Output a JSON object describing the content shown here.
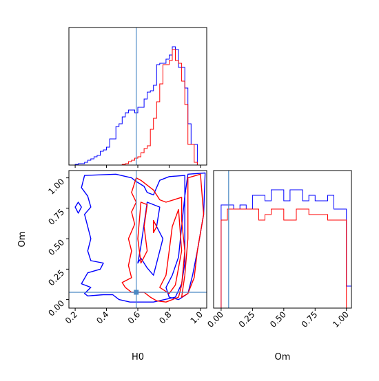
{
  "chart_data": {
    "type": "corner",
    "parameters": [
      "H0",
      "Om"
    ],
    "truth": {
      "H0": 0.59,
      "Om": 0.06
    },
    "colors": {
      "red": "#ff0000",
      "blue": "#0000ff",
      "truth": "#4a89c4"
    },
    "panels": [
      {
        "id": "hist_H0",
        "type": "step-histogram",
        "x_param": "H0",
        "xlim": [
          0.16,
          1.04
        ],
        "ylim": [
          0,
          1.0
        ],
        "bin_edges": [
          0.16,
          0.18,
          0.2,
          0.22,
          0.24,
          0.26,
          0.28,
          0.3,
          0.32,
          0.34,
          0.36,
          0.38,
          0.4,
          0.42,
          0.44,
          0.46,
          0.48,
          0.5,
          0.52,
          0.54,
          0.56,
          0.58,
          0.6,
          0.62,
          0.64,
          0.66,
          0.68,
          0.7,
          0.72,
          0.74,
          0.76,
          0.78,
          0.8,
          0.82,
          0.84,
          0.86,
          0.88,
          0.9,
          0.92,
          0.94,
          0.96,
          0.98,
          1.0
        ],
        "series": [
          {
            "name": "",
            "color": "#0000ff",
            "values": [
              0.0,
              0.0,
              0.005,
              0.01,
              0.01,
              0.02,
              0.035,
              0.045,
              0.06,
              0.07,
              0.1,
              0.11,
              0.13,
              0.19,
              0.19,
              0.28,
              0.3,
              0.35,
              0.38,
              0.4,
              0.4,
              0.38,
              0.42,
              0.42,
              0.48,
              0.53,
              0.54,
              0.58,
              0.73,
              0.74,
              0.74,
              0.77,
              0.8,
              0.86,
              0.84,
              0.71,
              0.71,
              0.56,
              0.3,
              0.15,
              0.15,
              0.0
            ]
          },
          {
            "name": "",
            "color": "#ff0000",
            "values": [
              0.0,
              0.0,
              0.0,
              0.0,
              0.0,
              0.0,
              0.0,
              0.0,
              0.0,
              0.0,
              0.0,
              0.0,
              0.0,
              0.0,
              0.0,
              0.0,
              0.0,
              0.005,
              0.01,
              0.025,
              0.035,
              0.05,
              0.06,
              0.09,
              0.12,
              0.14,
              0.26,
              0.34,
              0.46,
              0.59,
              0.73,
              0.73,
              0.76,
              0.84,
              0.76,
              0.74,
              0.61,
              0.44,
              0.15,
              0.15,
              0.02,
              0.0
            ]
          }
        ]
      },
      {
        "id": "hist_Om",
        "type": "step-histogram",
        "x_param": "Om",
        "xlim": [
          -0.06,
          1.04
        ],
        "ylim": [
          0,
          1.0
        ],
        "bin_edges": [
          -0.06,
          -0.01,
          0.0,
          0.05,
          0.1,
          0.15,
          0.2,
          0.25,
          0.3,
          0.35,
          0.4,
          0.45,
          0.5,
          0.55,
          0.6,
          0.65,
          0.7,
          0.75,
          0.8,
          0.85,
          0.9,
          0.95,
          1.0,
          1.04
        ],
        "series": [
          {
            "name": "",
            "color": "#0000ff",
            "values": [
              0.0,
              0.0,
              0.75,
              0.75,
              0.72,
              0.75,
              0.72,
              0.82,
              0.82,
              0.78,
              0.86,
              0.86,
              0.78,
              0.86,
              0.86,
              0.78,
              0.82,
              0.78,
              0.78,
              0.82,
              0.72,
              0.72,
              0.16
            ]
          },
          {
            "name": "",
            "color": "#ff0000",
            "values": [
              0.0,
              0.0,
              0.64,
              0.72,
              0.72,
              0.72,
              0.72,
              0.72,
              0.64,
              0.68,
              0.72,
              0.72,
              0.64,
              0.64,
              0.72,
              0.72,
              0.68,
              0.68,
              0.68,
              0.64,
              0.64,
              0.64,
              0.0
            ]
          }
        ]
      },
      {
        "id": "contour_H0_Om",
        "type": "contour",
        "x_param": "H0",
        "y_param": "Om",
        "xlim": [
          0.16,
          1.04
        ],
        "ylim": [
          -0.07,
          1.06
        ],
        "xticks": [
          "0.2",
          "0.4",
          "0.6",
          "0.8",
          "1.0"
        ],
        "xtick_values": [
          0.2,
          0.4,
          0.6,
          0.8,
          1.0
        ],
        "yticks": [
          "0.00",
          "0.25",
          "0.50",
          "0.75",
          "1.00"
        ],
        "ytick_values": [
          0.0,
          0.25,
          0.5,
          0.75,
          1.0
        ],
        "xlabel": "H0",
        "ylabel": "Om",
        "series": [
          {
            "name": "",
            "color": "#0000ff",
            "contours": [
              [
                [
                  0.26,
                  1.02
                ],
                [
                  0.46,
                  1.03
                ],
                [
                  0.56,
                  1.0
                ],
                [
                  0.59,
                  0.97
                ],
                [
                  0.64,
                  0.93
                ],
                [
                  0.66,
                  0.88
                ],
                [
                  0.7,
                  0.86
                ],
                [
                  0.74,
                  0.98
                ],
                [
                  0.8,
                  1.01
                ],
                [
                  0.9,
                  1.02
                ],
                [
                  0.9,
                  0.6
                ],
                [
                  0.9,
                  0.3
                ],
                [
                  0.88,
                  0.13
                ],
                [
                  0.84,
                  0.02
                ],
                [
                  0.7,
                  -0.02
                ],
                [
                  0.55,
                  -0.02
                ],
                [
                  0.48,
                  0.0
                ],
                [
                  0.44,
                  0.04
                ],
                [
                  0.38,
                  0.04
                ],
                [
                  0.28,
                  0.03
                ],
                [
                  0.26,
                  0.05
                ],
                [
                  0.3,
                  0.1
                ],
                [
                  0.24,
                  0.13
                ],
                [
                  0.28,
                  0.22
                ],
                [
                  0.36,
                  0.25
                ],
                [
                  0.38,
                  0.3
                ],
                [
                  0.3,
                  0.32
                ],
                [
                  0.28,
                  0.4
                ],
                [
                  0.3,
                  0.5
                ],
                [
                  0.28,
                  0.6
                ],
                [
                  0.26,
                  0.7
                ],
                [
                  0.3,
                  0.76
                ],
                [
                  0.28,
                  0.85
                ],
                [
                  0.24,
                  0.92
                ],
                [
                  0.26,
                  1.02
                ]
              ],
              [
                [
                  0.22,
                  0.71
                ],
                [
                  0.24,
                  0.76
                ],
                [
                  0.22,
                  0.8
                ],
                [
                  0.2,
                  0.76
                ],
                [
                  0.22,
                  0.71
                ]
              ],
              [
                [
                  0.66,
                  0.8
                ],
                [
                  0.74,
                  0.76
                ],
                [
                  0.72,
                  0.6
                ],
                [
                  0.76,
                  0.5
                ],
                [
                  0.72,
                  0.3
                ],
                [
                  0.7,
                  0.2
                ],
                [
                  0.66,
                  0.26
                ],
                [
                  0.62,
                  0.34
                ],
                [
                  0.6,
                  0.3
                ],
                [
                  0.62,
                  0.44
                ],
                [
                  0.64,
                  0.62
                ],
                [
                  0.66,
                  0.8
                ]
              ],
              [
                [
                  0.92,
                  1.03
                ],
                [
                  1.03,
                  1.04
                ],
                [
                  1.02,
                  0.7
                ],
                [
                  0.98,
                  0.4
                ],
                [
                  0.95,
                  0.2
                ],
                [
                  0.92,
                  0.05
                ],
                [
                  0.86,
                  0.0
                ],
                [
                  0.8,
                  0.02
                ],
                [
                  0.78,
                  0.1
                ],
                [
                  0.82,
                  0.2
                ],
                [
                  0.86,
                  0.35
                ],
                [
                  0.88,
                  0.6
                ],
                [
                  0.9,
                  0.85
                ],
                [
                  0.92,
                  1.03
                ]
              ]
            ]
          },
          {
            "name": "",
            "color": "#ff0000",
            "contours": [
              [
                [
                  0.59,
                  1.0
                ],
                [
                  0.62,
                  0.98
                ],
                [
                  0.7,
                  0.9
                ],
                [
                  0.74,
                  0.82
                ],
                [
                  0.78,
                  0.8
                ],
                [
                  0.88,
                  0.84
                ],
                [
                  0.88,
                  0.65
                ],
                [
                  0.9,
                  0.4
                ],
                [
                  0.88,
                  0.12
                ],
                [
                  0.86,
                  0.02
                ],
                [
                  0.78,
                  -0.02
                ],
                [
                  0.72,
                  -0.01
                ],
                [
                  0.68,
                  0.02
                ],
                [
                  0.64,
                  0.06
                ],
                [
                  0.56,
                  0.06
                ],
                [
                  0.52,
                  0.1
                ],
                [
                  0.5,
                  0.14
                ],
                [
                  0.56,
                  0.18
                ],
                [
                  0.54,
                  0.28
                ],
                [
                  0.56,
                  0.4
                ],
                [
                  0.54,
                  0.5
                ],
                [
                  0.58,
                  0.62
                ],
                [
                  0.56,
                  0.72
                ],
                [
                  0.59,
                  0.8
                ],
                [
                  0.56,
                  0.88
                ],
                [
                  0.59,
                  1.0
                ]
              ],
              [
                [
                  0.62,
                  0.8
                ],
                [
                  0.66,
                  0.78
                ],
                [
                  0.64,
                  0.6
                ],
                [
                  0.66,
                  0.4
                ],
                [
                  0.62,
                  0.3
                ],
                [
                  0.6,
                  0.5
                ],
                [
                  0.62,
                  0.8
                ]
              ],
              [
                [
                  0.7,
                  0.65
                ],
                [
                  0.72,
                  0.6
                ],
                [
                  0.7,
                  0.55
                ],
                [
                  0.7,
                  0.65
                ]
              ],
              [
                [
                  0.74,
                  0.1
                ],
                [
                  0.78,
                  0.2
                ],
                [
                  0.8,
                  0.4
                ],
                [
                  0.82,
                  0.6
                ],
                [
                  0.86,
                  0.74
                ],
                [
                  0.88,
                  0.4
                ],
                [
                  0.84,
                  0.12
                ],
                [
                  0.8,
                  0.05
                ],
                [
                  0.74,
                  0.1
                ]
              ],
              [
                [
                  0.92,
                  1.0
                ],
                [
                  1.0,
                  1.03
                ],
                [
                  1.02,
                  0.7
                ],
                [
                  0.98,
                  0.4
                ],
                [
                  0.96,
                  0.18
                ],
                [
                  0.92,
                  0.05
                ],
                [
                  0.88,
                  0.02
                ],
                [
                  0.9,
                  0.2
                ],
                [
                  0.92,
                  0.5
                ],
                [
                  0.92,
                  1.0
                ]
              ]
            ]
          }
        ]
      }
    ],
    "hist_H0_xtick_values": [
      0.2,
      0.4,
      0.6,
      0.8,
      1.0
    ],
    "hist_Om_xticks": [
      "0.00",
      "0.25",
      "0.50",
      "0.75",
      "1.00"
    ],
    "hist_Om_xtick_values": [
      0.0,
      0.25,
      0.5,
      0.75,
      1.0
    ],
    "hist_Om_xlabel": "Om"
  }
}
